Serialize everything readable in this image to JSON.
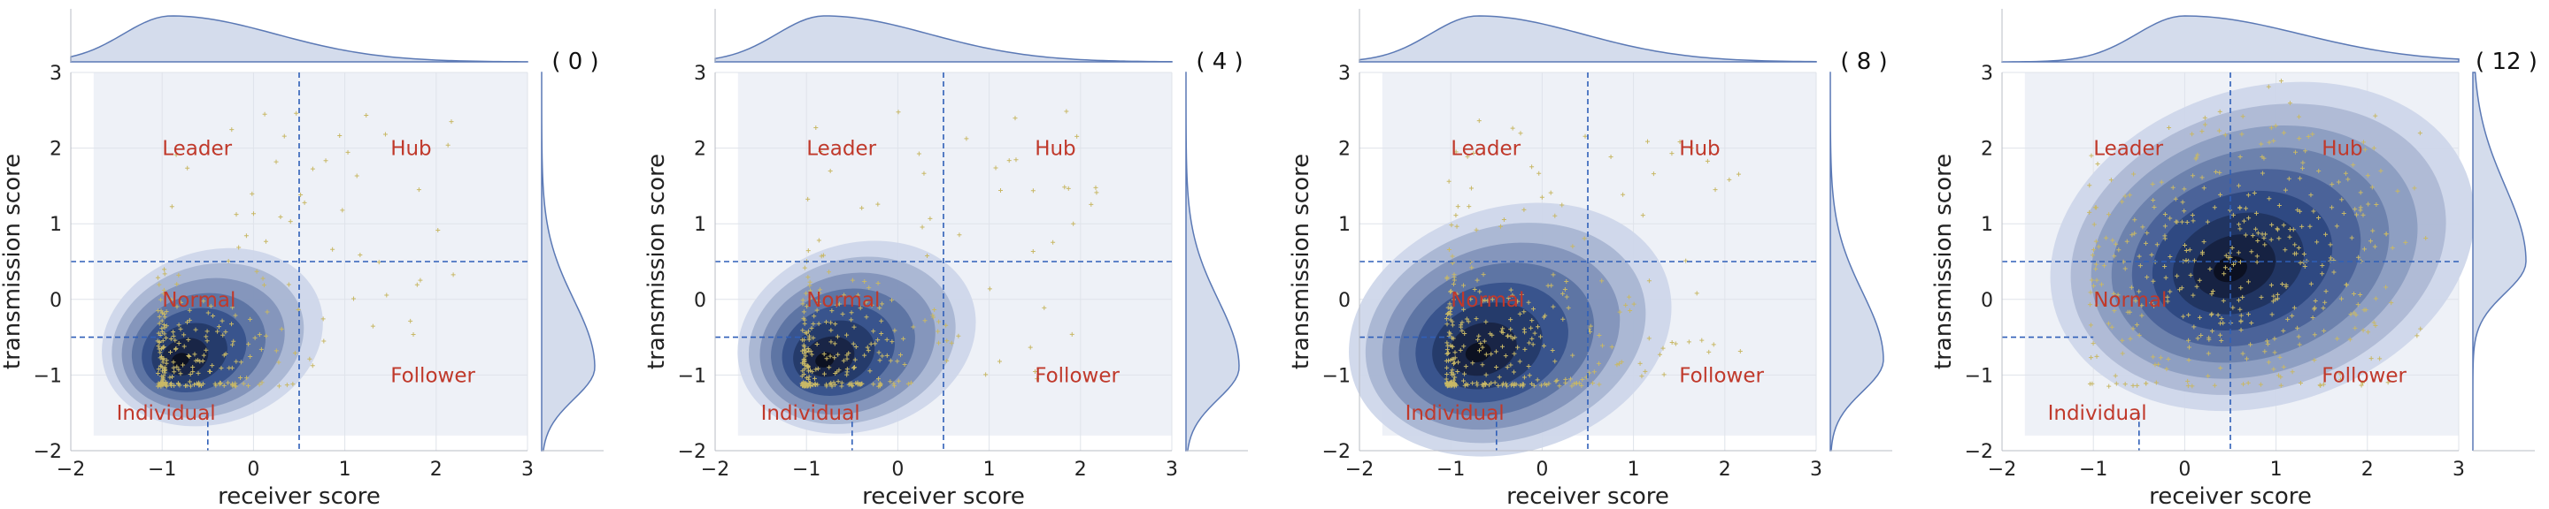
{
  "colors": {
    "kde_dark": "#0b0f1e",
    "kde_mid": "#2e4a86",
    "kde_light": "#cdd6e9",
    "plot_bg": "#eef1f7",
    "divider": "#2f5fb8",
    "label_red": "#c0392b",
    "scatter": "#c8b866",
    "marginal_line": "#5b79b5",
    "marginal_fill": "#cdd6e9"
  },
  "chart_data": [
    {
      "type": "scatter",
      "panel_label": "( 0 )",
      "xlabel": "receiver score",
      "ylabel": "transmission score",
      "xlim": [
        -2,
        3
      ],
      "ylim": [
        -2,
        3
      ],
      "xticks": [
        "−2",
        "−1",
        "0",
        "1",
        "2",
        "3"
      ],
      "yticks": [
        "−2",
        "−1",
        "0",
        "1",
        "2",
        "3"
      ],
      "vline_x": 0.5,
      "hline_y": 0.5,
      "vline2_x": -0.5,
      "hline2_y": -0.5,
      "region_labels": [
        {
          "text": "Leader",
          "x": -1.0,
          "y": 2.0
        },
        {
          "text": "Hub",
          "x": 1.5,
          "y": 2.0
        },
        {
          "text": "Normal",
          "x": -1.0,
          "y": 0.0
        },
        {
          "text": "Follower",
          "x": 1.5,
          "y": -1.0
        },
        {
          "text": "Individual",
          "x": -1.5,
          "y": -1.5
        }
      ],
      "density_center": [
        -0.8,
        -0.8
      ],
      "density_spread": [
        0.65,
        0.6
      ],
      "density_levels": 8,
      "n_points": 260,
      "seed": 11,
      "x_marginal_peak": -0.9,
      "y_marginal_peak": -0.9
    },
    {
      "type": "scatter",
      "panel_label": "( 4 )",
      "xlabel": "receiver score",
      "ylabel": "transmission score",
      "xlim": [
        -2,
        3
      ],
      "ylim": [
        -2,
        3
      ],
      "xticks": [
        "−2",
        "−1",
        "0",
        "1",
        "2",
        "3"
      ],
      "yticks": [
        "−2",
        "−1",
        "0",
        "1",
        "2",
        "3"
      ],
      "vline_x": 0.5,
      "hline_y": 0.5,
      "vline2_x": -0.5,
      "hline2_y": -0.5,
      "region_labels": [
        {
          "text": "Leader",
          "x": -1.0,
          "y": 2.0
        },
        {
          "text": "Hub",
          "x": 1.5,
          "y": 2.0
        },
        {
          "text": "Normal",
          "x": -1.0,
          "y": 0.0
        },
        {
          "text": "Follower",
          "x": 1.5,
          "y": -1.0
        },
        {
          "text": "Individual",
          "x": -1.5,
          "y": -1.5
        }
      ],
      "density_center": [
        -0.8,
        -0.8
      ],
      "density_spread": [
        0.7,
        0.65
      ],
      "density_levels": 8,
      "n_points": 280,
      "seed": 23,
      "x_marginal_peak": -0.8,
      "y_marginal_peak": -0.9
    },
    {
      "type": "scatter",
      "panel_label": "( 8 )",
      "xlabel": "receiver score",
      "ylabel": "transmission score",
      "xlim": [
        -2,
        3
      ],
      "ylim": [
        -2,
        3
      ],
      "xticks": [
        "−2",
        "−1",
        "0",
        "1",
        "2",
        "3"
      ],
      "yticks": [
        "−2",
        "−1",
        "0",
        "1",
        "2",
        "3"
      ],
      "vline_x": 0.5,
      "hline_y": 0.5,
      "vline2_x": -0.5,
      "hline2_y": -0.5,
      "region_labels": [
        {
          "text": "Leader",
          "x": -1.0,
          "y": 2.0
        },
        {
          "text": "Hub",
          "x": 1.5,
          "y": 2.0
        },
        {
          "text": "Normal",
          "x": -1.0,
          "y": 0.0
        },
        {
          "text": "Follower",
          "x": 1.5,
          "y": -1.0
        },
        {
          "text": "Individual",
          "x": -1.5,
          "y": -1.5
        }
      ],
      "density_center": [
        -0.7,
        -0.7
      ],
      "density_spread": [
        0.95,
        0.85
      ],
      "density_levels": 8,
      "n_points": 320,
      "seed": 37,
      "x_marginal_peak": -0.7,
      "y_marginal_peak": -0.8
    },
    {
      "type": "scatter",
      "panel_label": "( 12 )",
      "xlabel": "receiver score",
      "ylabel": "transmission score",
      "xlim": [
        -2,
        3
      ],
      "ylim": [
        -2,
        3
      ],
      "xticks": [
        "−2",
        "−1",
        "0",
        "1",
        "2",
        "3"
      ],
      "yticks": [
        "−2",
        "−1",
        "0",
        "1",
        "2",
        "3"
      ],
      "vline_x": 0.5,
      "hline_y": 0.5,
      "vline2_x": -0.5,
      "hline2_y": -0.5,
      "region_labels": [
        {
          "text": "Leader",
          "x": -1.0,
          "y": 2.0
        },
        {
          "text": "Hub",
          "x": 1.5,
          "y": 2.0
        },
        {
          "text": "Normal",
          "x": -1.0,
          "y": 0.0
        },
        {
          "text": "Follower",
          "x": 1.5,
          "y": -1.0
        },
        {
          "text": "Individual",
          "x": -1.5,
          "y": -1.5
        }
      ],
      "density_center": [
        0.5,
        0.4
      ],
      "density_spread": [
        1.25,
        1.1
      ],
      "density_levels": 9,
      "n_points": 420,
      "seed": 53,
      "x_marginal_peak": 0.0,
      "y_marginal_peak": 0.5
    }
  ]
}
